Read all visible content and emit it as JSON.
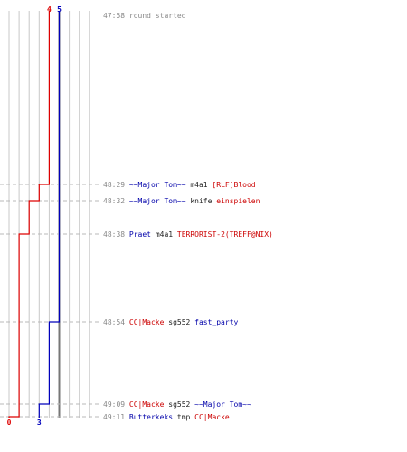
{
  "chart_data": {
    "type": "line",
    "teams": {
      "blue": {
        "color": "#0000bb",
        "start_label": "5",
        "end_label": "3"
      },
      "red": {
        "color": "#dd0000",
        "start_label": "4",
        "end_label": "0"
      }
    },
    "counts": {
      "min": 0,
      "max": 8
    },
    "blue_steps": [
      {
        "event": 0,
        "count": 5
      },
      {
        "event": 4,
        "count": 4
      },
      {
        "event": 5,
        "count": 3
      }
    ],
    "red_steps": [
      {
        "event": 0,
        "count": 4
      },
      {
        "event": 1,
        "count": 3
      },
      {
        "event": 2,
        "count": 2
      },
      {
        "event": 3,
        "count": 1
      },
      {
        "event": 6,
        "count": 0
      }
    ],
    "events": [
      {
        "time": "47:58",
        "parts": [
          {
            "text": "round started",
            "team": "neutral"
          }
        ]
      },
      {
        "time": "48:29",
        "parts": [
          {
            "text": "~~Major Tom~~",
            "team": "blue"
          },
          {
            "text": " m4a1 ",
            "team": "weapon"
          },
          {
            "text": "[RLF]Blood",
            "team": "red"
          }
        ]
      },
      {
        "time": "48:32",
        "parts": [
          {
            "text": "~~Major Tom~~",
            "team": "blue"
          },
          {
            "text": " knife ",
            "team": "weapon"
          },
          {
            "text": "einspielen",
            "team": "red"
          }
        ]
      },
      {
        "time": "48:38",
        "parts": [
          {
            "text": "Praet",
            "team": "blue"
          },
          {
            "text": " m4a1 ",
            "team": "weapon"
          },
          {
            "text": "TERRORIST-2(TREFF@NIX)",
            "team": "red"
          }
        ]
      },
      {
        "time": "48:54",
        "parts": [
          {
            "text": "CC|Macke",
            "team": "red"
          },
          {
            "text": " sg552 ",
            "team": "weapon"
          },
          {
            "text": "fast_party",
            "team": "blue"
          }
        ]
      },
      {
        "time": "49:09",
        "parts": [
          {
            "text": "CC|Macke",
            "team": "red"
          },
          {
            "text": " sg552 ",
            "team": "weapon"
          },
          {
            "text": "~~Major Tom~~",
            "team": "blue"
          }
        ]
      },
      {
        "time": "49:11",
        "parts": [
          {
            "text": "Butterkeks",
            "team": "blue"
          },
          {
            "text": " tmp ",
            "team": "weapon"
          },
          {
            "text": "CC|Macke",
            "team": "red"
          }
        ]
      }
    ],
    "colors": {
      "neutral": "#888888",
      "weapon": "#222222",
      "blue": "#0000aa",
      "red": "#cc0000",
      "grid": "#c8c8c8",
      "center": "#777777",
      "dash": "#b8b8b8"
    }
  }
}
